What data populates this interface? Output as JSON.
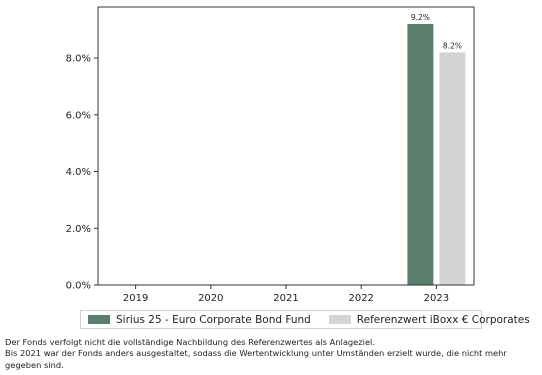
{
  "chart_data": {
    "type": "bar",
    "categories": [
      "2019",
      "2020",
      "2021",
      "2022",
      "2023"
    ],
    "series": [
      {
        "name": "Sirius 25 - Euro Corporate Bond Fund",
        "color": "#5a7f6c",
        "values": [
          null,
          null,
          null,
          null,
          9.2
        ]
      },
      {
        "name": "Referenzwert iBoxx € Corporates",
        "color": "#d4d4d4",
        "values": [
          null,
          null,
          null,
          null,
          8.2
        ]
      }
    ],
    "data_labels": [
      [
        null,
        null,
        null,
        null,
        "9.2%"
      ],
      [
        null,
        null,
        null,
        null,
        "8.2%"
      ]
    ],
    "ylim": [
      0,
      9.8
    ],
    "yticks": [
      0,
      2,
      4,
      6,
      8
    ],
    "ytick_labels": [
      "0.0%",
      "2.0%",
      "4.0%",
      "6.0%",
      "8.0%"
    ],
    "title": "",
    "xlabel": "",
    "ylabel": "",
    "grid": false,
    "legend": "bottom"
  },
  "notes": [
    "Der Fonds verfolgt nicht die vollständige Nachbildung des Referenzwertes als Anlageziel.",
    "Bis 2021 war der Fonds anders ausgestaltet, sodass die Wertentwicklung unter Umständen erzielt wurde, die nicht mehr gegeben sind."
  ]
}
